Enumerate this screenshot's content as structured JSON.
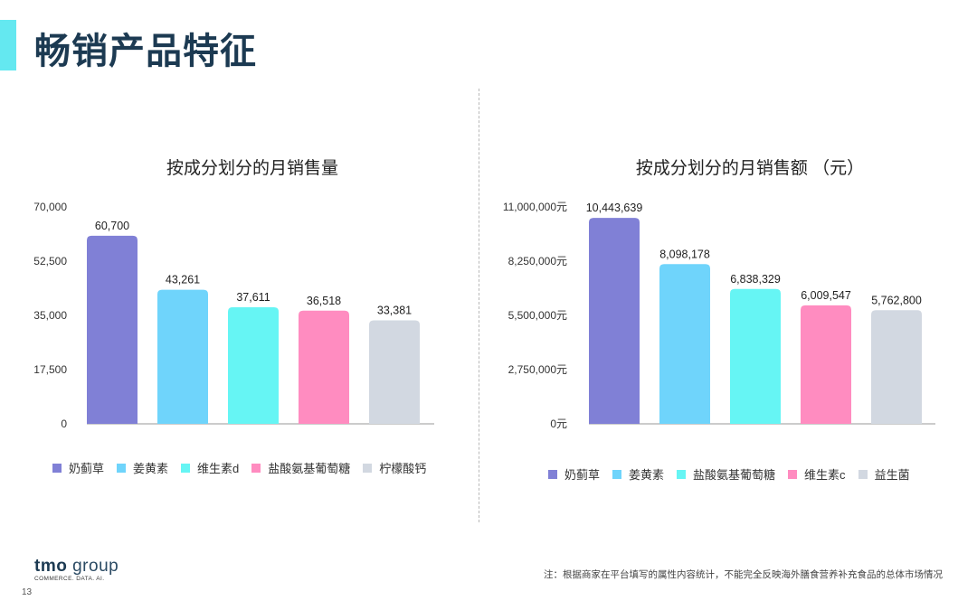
{
  "page": {
    "title": "畅销产品特征",
    "number": "13",
    "footnote": "注：根据商家在平台填写的属性内容统计，不能完全反映海外膳食营养补充食品的总体市场情况",
    "logo": {
      "brand": "tmo",
      "group": " group",
      "tagline": "COMMERCE. DATA. AI."
    },
    "accent_color": "#64e8f0",
    "title_color": "#1c3a52"
  },
  "chart_data": [
    {
      "type": "bar",
      "title": "按成分划分的月销售量",
      "categories": [
        "奶蓟草",
        "姜黄素",
        "维生素d",
        "盐酸氨基葡萄糖",
        "柠檬酸钙"
      ],
      "values": [
        60700,
        43261,
        37611,
        36518,
        33381
      ],
      "value_labels": [
        "60,700",
        "43,261",
        "37,611",
        "36,518",
        "33,381"
      ],
      "colors": [
        "#8080d6",
        "#6fd4fb",
        "#66f5f4",
        "#ff8cc0",
        "#d2d8e1"
      ],
      "ylim": [
        0,
        70000
      ],
      "yticks": [
        "0",
        "17,500",
        "35,000",
        "52,500",
        "70,000"
      ],
      "legend": [
        "奶蓟草",
        "姜黄素",
        "维生素d",
        "盐酸氨基葡萄糖",
        "柠檬酸钙"
      ],
      "legend_position": "bottom",
      "xlabel": "",
      "ylabel": "",
      "grid": false
    },
    {
      "type": "bar",
      "title": "按成分划分的月销售额 （元）",
      "categories": [
        "奶蓟草",
        "姜黄素",
        "盐酸氨基葡萄糖",
        "维生素c",
        "益生菌"
      ],
      "values": [
        10443639,
        8098178,
        6838329,
        6009547,
        5762800
      ],
      "value_labels": [
        "10,443,639",
        "8,098,178",
        "6,838,329",
        "6,009,547",
        "5,762,800"
      ],
      "colors": [
        "#8080d6",
        "#6fd4fb",
        "#66f5f4",
        "#ff8cc0",
        "#d2d8e1"
      ],
      "ylim": [
        0,
        11000000
      ],
      "yticks": [
        "0元",
        "2,750,000元",
        "5,500,000元",
        "8,250,000元",
        "11,000,000元"
      ],
      "legend": [
        "奶蓟草",
        "姜黄素",
        "盐酸氨基葡萄糖",
        "维生素c",
        "益生菌"
      ],
      "legend_position": "bottom",
      "xlabel": "",
      "ylabel": "",
      "grid": false
    }
  ]
}
